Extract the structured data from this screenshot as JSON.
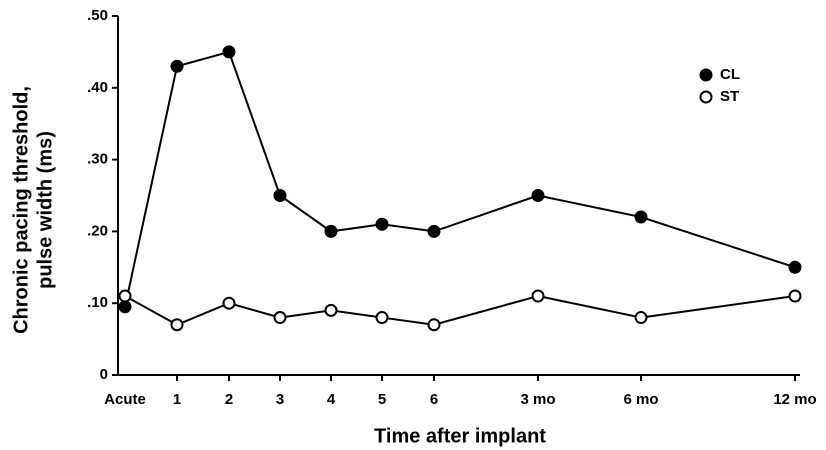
{
  "chart_data": {
    "type": "line",
    "xlabel": "Time after implant",
    "ylabel": [
      "Chronic pacing threshold,",
      "pulse width (ms)"
    ],
    "categories": [
      "Acute",
      "1",
      "2",
      "3",
      "4",
      "5",
      "6",
      "3 mo",
      "6 mo",
      "12 mo"
    ],
    "series": [
      {
        "name": "CL",
        "color": "#000000",
        "marker": "filled",
        "values": [
          0.095,
          0.43,
          0.45,
          0.25,
          0.2,
          0.21,
          0.2,
          0.25,
          0.22,
          0.15
        ]
      },
      {
        "name": "ST",
        "color": "#000000",
        "marker": "open",
        "values": [
          0.11,
          0.07,
          0.1,
          0.08,
          0.09,
          0.08,
          0.07,
          0.11,
          0.08,
          0.11
        ]
      }
    ],
    "ylim": [
      0,
      0.5
    ],
    "yticks": [
      0,
      {
        "value": 0.1,
        "label": ".10"
      },
      {
        "value": 0.2,
        "label": ".20"
      },
      {
        "value": 0.3,
        "label": ".30"
      },
      {
        "value": 0.4,
        "label": ".40"
      },
      {
        "value": 0.5,
        "label": ".50"
      }
    ],
    "legend": "upper right"
  }
}
